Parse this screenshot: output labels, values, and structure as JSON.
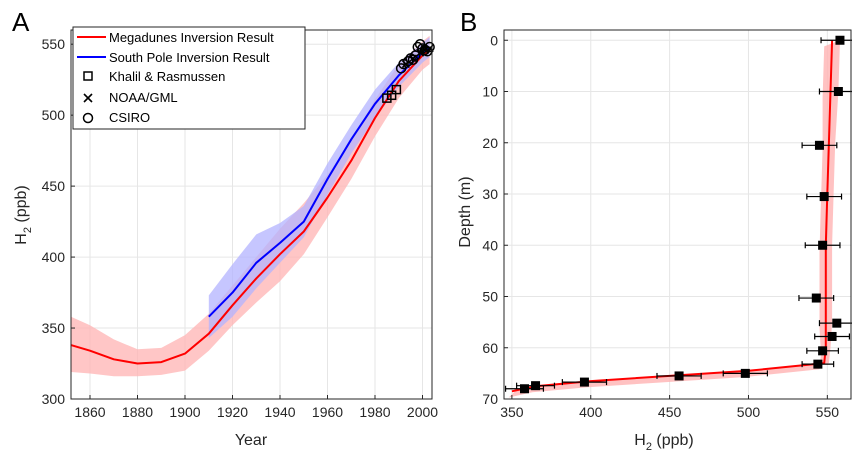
{
  "chart_data": [
    {
      "type": "line",
      "panel_label": "A",
      "xlabel": "Year",
      "ylabel_main": "H",
      "ylabel_sub": "2",
      "ylabel_rest": " (ppb)",
      "xlim": [
        1852,
        2004
      ],
      "ylim": [
        300,
        560
      ],
      "xticks": [
        1860,
        1880,
        1900,
        1920,
        1940,
        1960,
        1980,
        2000
      ],
      "yticks": [
        300,
        350,
        400,
        450,
        500,
        550
      ],
      "grid": true,
      "legend_position": "top-left",
      "series": [
        {
          "name": "Megadunes Inversion Result",
          "color": "#ff0000",
          "band_color": "#ffb3b3",
          "x": [
            1852,
            1860,
            1870,
            1880,
            1890,
            1900,
            1910,
            1920,
            1930,
            1940,
            1950,
            1960,
            1970,
            1980,
            1990,
            2000,
            2003
          ],
          "y": [
            338,
            334,
            328,
            325,
            326,
            332,
            346,
            366,
            385,
            402,
            418,
            442,
            468,
            498,
            524,
            542,
            546
          ],
          "lower": [
            319,
            318,
            316,
            316,
            317,
            320,
            334,
            352,
            368,
            383,
            402,
            428,
            455,
            485,
            512,
            532,
            536
          ],
          "upper": [
            358,
            352,
            342,
            335,
            336,
            345,
            360,
            380,
            400,
            420,
            438,
            458,
            482,
            511,
            536,
            552,
            556
          ]
        },
        {
          "name": "South Pole Inversion Result",
          "color": "#0000ff",
          "band_color": "#b3b3ff",
          "x": [
            1910,
            1920,
            1930,
            1940,
            1950,
            1960,
            1970,
            1980,
            1990,
            2000,
            2003
          ],
          "y": [
            358,
            375,
            396,
            410,
            425,
            455,
            483,
            508,
            528,
            544,
            548
          ],
          "lower": [
            343,
            358,
            378,
            396,
            414,
            444,
            473,
            498,
            520,
            537,
            541
          ],
          "upper": [
            373,
            395,
            416,
            424,
            436,
            466,
            493,
            518,
            537,
            551,
            555
          ]
        }
      ],
      "points": [
        {
          "name": "Khalil & Rasmussen",
          "marker": "square",
          "x": [
            1985,
            1987,
            1989
          ],
          "y": [
            512,
            514,
            518
          ]
        },
        {
          "name": "NOAA/GML",
          "marker": "cross",
          "x": [
            1993,
            1996,
            1999,
            2001,
            2003
          ],
          "y": [
            536,
            540,
            544,
            546,
            547
          ]
        },
        {
          "name": "CSIRO",
          "marker": "circle",
          "x": [
            1991,
            1992,
            1994,
            1995,
            1996,
            1997,
            1998,
            1999,
            2000,
            2001,
            2002,
            2003
          ],
          "y": [
            533,
            536,
            538,
            540,
            539,
            542,
            548,
            550,
            547,
            546,
            545,
            548
          ]
        }
      ]
    },
    {
      "type": "line",
      "panel_label": "B",
      "xlabel_main": "H",
      "xlabel_sub": "2",
      "xlabel_rest": " (ppb)",
      "ylabel": "Depth (m)",
      "xlim": [
        345,
        565
      ],
      "ylim": [
        70,
        -2
      ],
      "y_reversed": true,
      "xticks": [
        350,
        400,
        450,
        500,
        550
      ],
      "yticks": [
        0,
        10,
        20,
        30,
        40,
        50,
        60,
        70
      ],
      "grid": true,
      "line": {
        "color": "#ff0000",
        "band_color": "#ffb3b3",
        "depth": [
          0,
          10,
          20,
          30,
          40,
          50,
          55,
          60,
          63,
          64.5,
          65.5,
          66.5,
          67.5,
          68.5
        ],
        "h2": [
          553,
          552,
          551,
          550,
          549,
          549,
          549,
          549,
          548,
          500,
          450,
          400,
          365,
          350
        ],
        "band_halfwidth": [
          5,
          5,
          4,
          4,
          4,
          4,
          4,
          3,
          3,
          2,
          2,
          2,
          2,
          2
        ]
      },
      "measurements": {
        "marker": "filled-square",
        "depth": [
          0,
          10,
          20.5,
          30.5,
          40,
          50.3,
          55.2,
          57.8,
          60.6,
          63.2,
          65,
          65.5,
          66.7,
          67.4,
          68
        ],
        "h2": [
          558,
          557,
          545,
          548,
          547,
          543,
          556,
          553,
          547,
          544,
          498,
          456,
          396,
          365,
          358
        ],
        "xerr": [
          12,
          12,
          11,
          11,
          11,
          11,
          11,
          11,
          10,
          10,
          14,
          14,
          14,
          12,
          12
        ]
      }
    }
  ]
}
